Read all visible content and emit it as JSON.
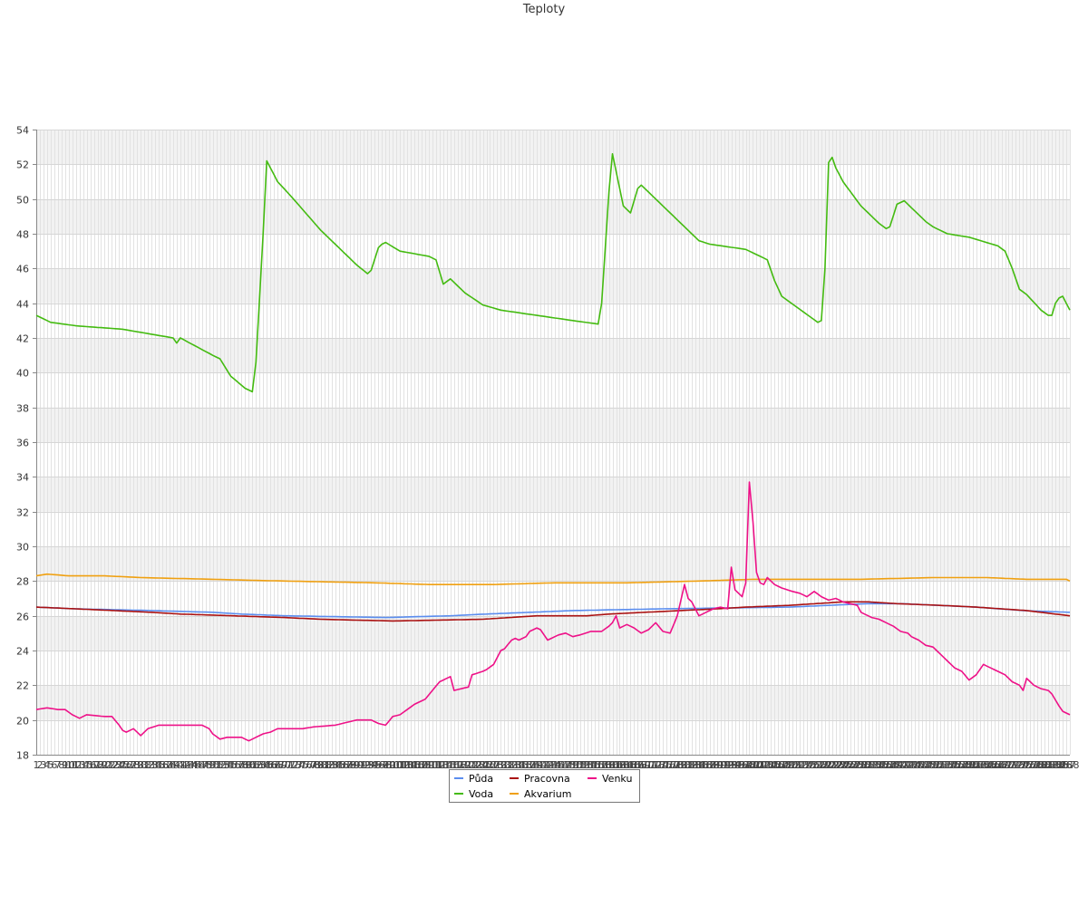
{
  "chart_data": {
    "type": "line",
    "title": "Teploty",
    "xlabel": "",
    "ylabel": "",
    "x_count": 288,
    "xlim": [
      1,
      288
    ],
    "ylim": [
      18,
      54
    ],
    "y_ticks": [
      18,
      20,
      22,
      24,
      26,
      28,
      30,
      32,
      34,
      36,
      38,
      40,
      42,
      44,
      46,
      48,
      50,
      52,
      54
    ],
    "grid": true,
    "legend_position": "bottom-center",
    "series": [
      {
        "name": "Půda",
        "color": "#5b8def",
        "keypoints": [
          [
            1,
            26.5
          ],
          [
            12,
            26.4
          ],
          [
            33,
            26.3
          ],
          [
            50,
            26.2
          ],
          [
            58,
            26.1
          ],
          [
            70,
            26.0
          ],
          [
            98,
            25.9
          ],
          [
            116,
            26.0
          ],
          [
            126,
            26.1
          ],
          [
            150,
            26.3
          ],
          [
            175,
            26.4
          ],
          [
            210,
            26.5
          ],
          [
            232,
            26.7
          ],
          [
            241,
            26.7
          ],
          [
            262,
            26.5
          ],
          [
            275,
            26.3
          ],
          [
            288,
            26.2
          ]
        ]
      },
      {
        "name": "Voda",
        "color": "#44bb11",
        "keypoints": [
          [
            1,
            43.3
          ],
          [
            5,
            42.9
          ],
          [
            12,
            42.7
          ],
          [
            25,
            42.5
          ],
          [
            41,
            42.0
          ],
          [
            39,
            42.0
          ],
          [
            40,
            41.7
          ],
          [
            50,
            41.0
          ],
          [
            52,
            40.8
          ],
          [
            55,
            39.8
          ],
          [
            59,
            39.1
          ],
          [
            61,
            38.9
          ],
          [
            62,
            40.6
          ],
          [
            64,
            48.0
          ],
          [
            65,
            52.2
          ],
          [
            66,
            51.8
          ],
          [
            68,
            51.0
          ],
          [
            72,
            50.1
          ],
          [
            80,
            48.2
          ],
          [
            90,
            46.2
          ],
          [
            93,
            45.7
          ],
          [
            94,
            45.9
          ],
          [
            96,
            47.2
          ],
          [
            97,
            47.4
          ],
          [
            98,
            47.5
          ],
          [
            102,
            47.0
          ],
          [
            110,
            46.7
          ],
          [
            112,
            46.5
          ],
          [
            114,
            45.1
          ],
          [
            116,
            45.4
          ],
          [
            120,
            44.6
          ],
          [
            125,
            43.9
          ],
          [
            130,
            43.6
          ],
          [
            140,
            43.3
          ],
          [
            150,
            43.0
          ],
          [
            157,
            42.8
          ],
          [
            158,
            44.0
          ],
          [
            160,
            50.4
          ],
          [
            161,
            52.6
          ],
          [
            162,
            51.6
          ],
          [
            164,
            49.6
          ],
          [
            166,
            49.2
          ],
          [
            168,
            50.6
          ],
          [
            169,
            50.8
          ],
          [
            170,
            50.6
          ],
          [
            175,
            49.6
          ],
          [
            180,
            48.6
          ],
          [
            185,
            47.6
          ],
          [
            188,
            47.4
          ],
          [
            198,
            47.1
          ],
          [
            204,
            46.5
          ],
          [
            206,
            45.3
          ],
          [
            208,
            44.4
          ],
          [
            212,
            43.8
          ],
          [
            216,
            43.2
          ],
          [
            218,
            42.9
          ],
          [
            219,
            43.0
          ],
          [
            220,
            46.0
          ],
          [
            221,
            52.1
          ],
          [
            222,
            52.4
          ],
          [
            223,
            51.8
          ],
          [
            225,
            51.0
          ],
          [
            230,
            49.6
          ],
          [
            235,
            48.6
          ],
          [
            237,
            48.3
          ],
          [
            238,
            48.4
          ],
          [
            240,
            49.7
          ],
          [
            242,
            49.9
          ],
          [
            248,
            48.7
          ],
          [
            250,
            48.4
          ],
          [
            254,
            48.0
          ],
          [
            260,
            47.8
          ],
          [
            268,
            47.3
          ],
          [
            270,
            47.0
          ],
          [
            272,
            46.0
          ],
          [
            274,
            44.8
          ],
          [
            276,
            44.5
          ],
          [
            280,
            43.6
          ],
          [
            282,
            43.3
          ],
          [
            283,
            43.3
          ],
          [
            284,
            44.0
          ],
          [
            285,
            44.3
          ],
          [
            286,
            44.4
          ],
          [
            288,
            43.6
          ]
        ]
      },
      {
        "name": "Pracovna",
        "color": "#aa1111",
        "keypoints": [
          [
            1,
            26.5
          ],
          [
            12,
            26.4
          ],
          [
            33,
            26.2
          ],
          [
            41,
            26.1
          ],
          [
            70,
            25.9
          ],
          [
            80,
            25.8
          ],
          [
            100,
            25.7
          ],
          [
            125,
            25.8
          ],
          [
            140,
            26.0
          ],
          [
            154,
            26.0
          ],
          [
            160,
            26.1
          ],
          [
            170,
            26.2
          ],
          [
            190,
            26.4
          ],
          [
            198,
            26.5
          ],
          [
            210,
            26.6
          ],
          [
            225,
            26.8
          ],
          [
            232,
            26.8
          ],
          [
            240,
            26.7
          ],
          [
            252,
            26.6
          ],
          [
            262,
            26.5
          ],
          [
            276,
            26.3
          ],
          [
            288,
            26.0
          ]
        ]
      },
      {
        "name": "Akvarium",
        "color": "#f0a010",
        "keypoints": [
          [
            1,
            28.3
          ],
          [
            4,
            28.4
          ],
          [
            10,
            28.3
          ],
          [
            20,
            28.3
          ],
          [
            30,
            28.2
          ],
          [
            50,
            28.1
          ],
          [
            70,
            28.0
          ],
          [
            95,
            27.9
          ],
          [
            110,
            27.8
          ],
          [
            128,
            27.8
          ],
          [
            145,
            27.9
          ],
          [
            165,
            27.9
          ],
          [
            185,
            28.0
          ],
          [
            200,
            28.1
          ],
          [
            215,
            28.1
          ],
          [
            230,
            28.1
          ],
          [
            250,
            28.2
          ],
          [
            265,
            28.2
          ],
          [
            276,
            28.1
          ],
          [
            287,
            28.1
          ],
          [
            288,
            28.0
          ]
        ]
      },
      {
        "name": "Venku",
        "color": "#ee1188",
        "keypoints": [
          [
            1,
            20.6
          ],
          [
            4,
            20.7
          ],
          [
            7,
            20.6
          ],
          [
            9,
            20.6
          ],
          [
            11,
            20.3
          ],
          [
            13,
            20.1
          ],
          [
            15,
            20.3
          ],
          [
            20,
            20.2
          ],
          [
            22,
            20.2
          ],
          [
            24,
            19.7
          ],
          [
            25,
            19.4
          ],
          [
            26,
            19.3
          ],
          [
            28,
            19.5
          ],
          [
            30,
            19.1
          ],
          [
            32,
            19.5
          ],
          [
            35,
            19.7
          ],
          [
            37,
            19.7
          ],
          [
            43,
            19.7
          ],
          [
            47,
            19.7
          ],
          [
            49,
            19.5
          ],
          [
            50,
            19.2
          ],
          [
            52,
            18.9
          ],
          [
            54,
            19.0
          ],
          [
            56,
            19.0
          ],
          [
            58,
            19.0
          ],
          [
            60,
            18.8
          ],
          [
            62,
            19.0
          ],
          [
            64,
            19.2
          ],
          [
            66,
            19.3
          ],
          [
            68,
            19.5
          ],
          [
            75,
            19.5
          ],
          [
            78,
            19.6
          ],
          [
            84,
            19.7
          ],
          [
            88,
            19.9
          ],
          [
            90,
            20.0
          ],
          [
            94,
            20.0
          ],
          [
            96,
            19.8
          ],
          [
            98,
            19.7
          ],
          [
            100,
            20.2
          ],
          [
            102,
            20.3
          ],
          [
            104,
            20.6
          ],
          [
            106,
            20.9
          ],
          [
            109,
            21.2
          ],
          [
            111,
            21.7
          ],
          [
            113,
            22.2
          ],
          [
            115,
            22.4
          ],
          [
            116,
            22.5
          ],
          [
            117,
            21.7
          ],
          [
            119,
            21.8
          ],
          [
            121,
            21.9
          ],
          [
            122,
            22.6
          ],
          [
            125,
            22.8
          ],
          [
            126,
            22.9
          ],
          [
            128,
            23.2
          ],
          [
            130,
            24.0
          ],
          [
            131,
            24.1
          ],
          [
            133,
            24.6
          ],
          [
            134,
            24.7
          ],
          [
            135,
            24.6
          ],
          [
            137,
            24.8
          ],
          [
            138,
            25.1
          ],
          [
            140,
            25.3
          ],
          [
            141,
            25.2
          ],
          [
            142,
            24.9
          ],
          [
            143,
            24.6
          ],
          [
            144,
            24.7
          ],
          [
            146,
            24.9
          ],
          [
            148,
            25.0
          ],
          [
            150,
            24.8
          ],
          [
            152,
            24.9
          ],
          [
            155,
            25.1
          ],
          [
            158,
            25.1
          ],
          [
            160,
            25.4
          ],
          [
            161,
            25.6
          ],
          [
            162,
            26.0
          ],
          [
            163,
            25.3
          ],
          [
            165,
            25.5
          ],
          [
            167,
            25.3
          ],
          [
            169,
            25.0
          ],
          [
            171,
            25.2
          ],
          [
            173,
            25.6
          ],
          [
            175,
            25.1
          ],
          [
            177,
            25.0
          ],
          [
            179,
            26.0
          ],
          [
            181,
            27.8
          ],
          [
            182,
            27.0
          ],
          [
            183,
            26.8
          ],
          [
            185,
            26.0
          ],
          [
            187,
            26.2
          ],
          [
            189,
            26.4
          ],
          [
            191,
            26.5
          ],
          [
            193,
            26.4
          ],
          [
            194,
            28.8
          ],
          [
            195,
            27.5
          ],
          [
            197,
            27.1
          ],
          [
            198,
            27.9
          ],
          [
            199,
            33.7
          ],
          [
            200,
            31.4
          ],
          [
            201,
            28.5
          ],
          [
            202,
            27.9
          ],
          [
            203,
            27.8
          ],
          [
            204,
            28.2
          ],
          [
            206,
            27.8
          ],
          [
            208,
            27.6
          ],
          [
            211,
            27.4
          ],
          [
            213,
            27.3
          ],
          [
            215,
            27.1
          ],
          [
            217,
            27.4
          ],
          [
            219,
            27.1
          ],
          [
            221,
            26.9
          ],
          [
            223,
            27.0
          ],
          [
            225,
            26.8
          ],
          [
            227,
            26.7
          ],
          [
            229,
            26.6
          ],
          [
            230,
            26.2
          ],
          [
            231,
            26.1
          ],
          [
            233,
            25.9
          ],
          [
            235,
            25.8
          ],
          [
            237,
            25.6
          ],
          [
            239,
            25.4
          ],
          [
            241,
            25.1
          ],
          [
            243,
            25.0
          ],
          [
            244,
            24.8
          ],
          [
            246,
            24.6
          ],
          [
            248,
            24.3
          ],
          [
            250,
            24.2
          ],
          [
            252,
            23.8
          ],
          [
            254,
            23.4
          ],
          [
            256,
            23.0
          ],
          [
            258,
            22.8
          ],
          [
            260,
            22.3
          ],
          [
            262,
            22.6
          ],
          [
            264,
            23.2
          ],
          [
            266,
            23.0
          ],
          [
            268,
            22.8
          ],
          [
            270,
            22.6
          ],
          [
            272,
            22.2
          ],
          [
            274,
            22.0
          ],
          [
            275,
            21.7
          ],
          [
            276,
            22.4
          ],
          [
            278,
            22.0
          ],
          [
            280,
            21.8
          ],
          [
            282,
            21.7
          ],
          [
            283,
            21.5
          ],
          [
            285,
            20.8
          ],
          [
            286,
            20.5
          ],
          [
            287,
            20.4
          ],
          [
            288,
            20.3
          ]
        ]
      }
    ]
  },
  "legend": {
    "items": [
      {
        "label": "Půda",
        "color": "#5b8def"
      },
      {
        "label": "Pracovna",
        "color": "#aa1111"
      },
      {
        "label": "Venku",
        "color": "#ee1188"
      },
      {
        "label": "Voda",
        "color": "#44bb11"
      },
      {
        "label": "Akvarium",
        "color": "#f0a010"
      }
    ]
  }
}
